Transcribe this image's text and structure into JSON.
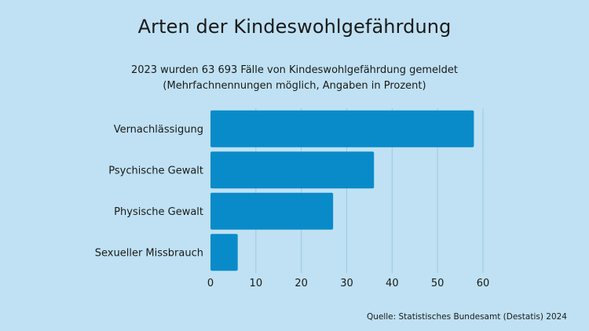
{
  "chart_data": {
    "type": "bar",
    "orientation": "horizontal",
    "title": "Arten der Kindeswohlgefährdung",
    "subtitle_lines": [
      "2023 wurden 63 693 Fälle von Kindeswohlgefährdung gemeldet",
      "(Mehrfachnennungen möglich, Angaben in Prozent)"
    ],
    "categories": [
      "Vernachlässigung",
      "Psychische Gewalt",
      "Physische Gewalt",
      "Sexueller Missbrauch"
    ],
    "values": [
      58,
      36,
      27,
      6
    ],
    "xlim": [
      0,
      60
    ],
    "x_ticks": [
      0,
      10,
      20,
      30,
      40,
      50,
      60
    ],
    "grid": "vertical",
    "bar_color": "#0a8bc9",
    "grid_color": "#9dc9e3",
    "source": "Quelle: Statistisches Bundesamt (Destatis) 2024"
  }
}
